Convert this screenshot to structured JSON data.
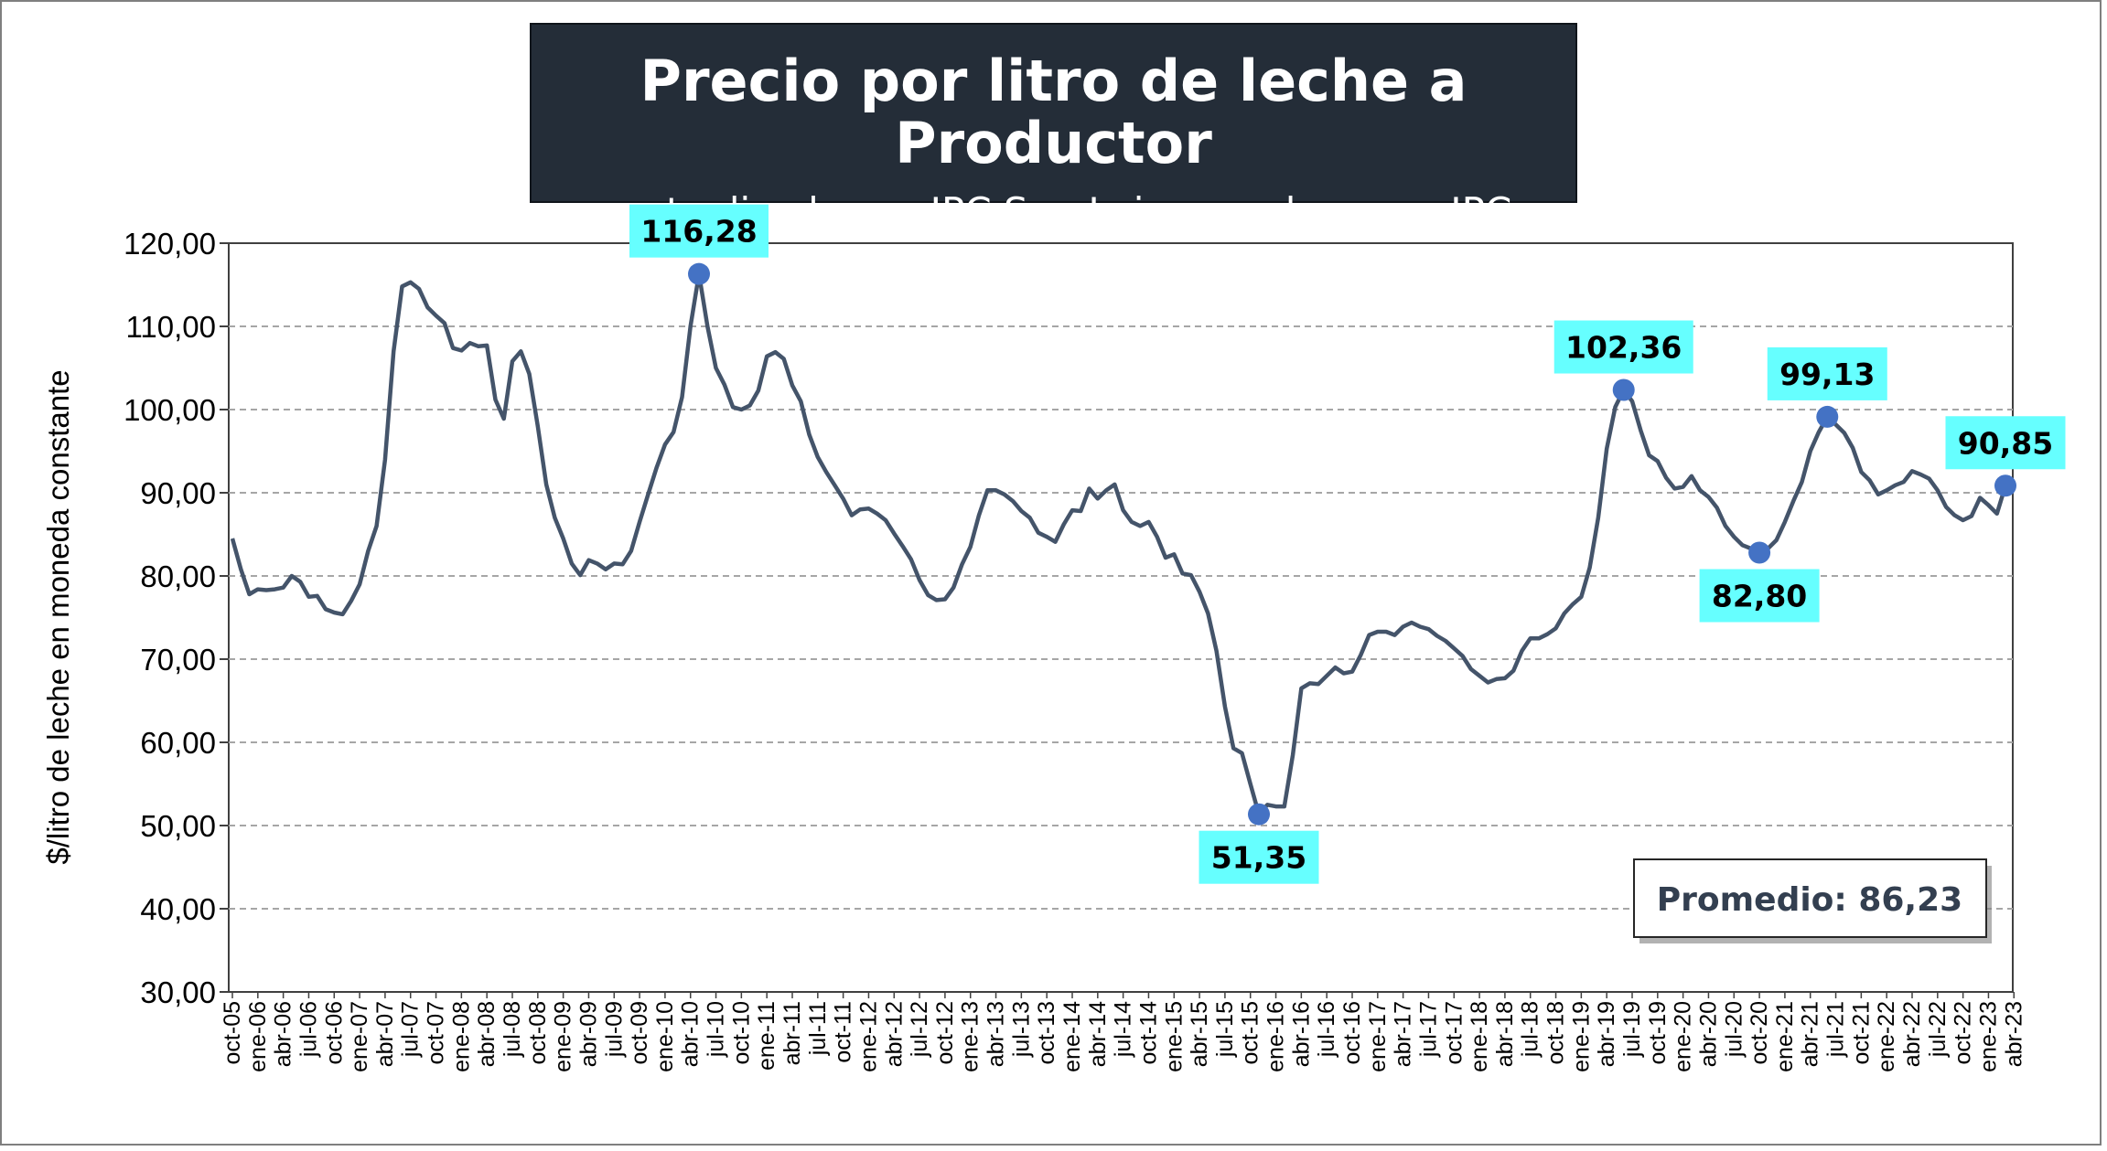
{
  "title": "Precio por litro de leche a Productor",
  "subtitle": "- actualizado por IPC San Luis empalme con IPC INDEC -",
  "average_label": "Promedio: 86,23",
  "colors": {
    "line": "#44546a",
    "marker": "#4472c4",
    "label_bg": "#66ffff",
    "title_bg": "#242d38",
    "grid": "#a6a6a6"
  },
  "chart_data": {
    "type": "line",
    "title": "Precio por litro de leche a Productor",
    "subtitle": "- actualizado por IPC San Luis empalme con IPC INDEC -",
    "xlabel": "",
    "ylabel": "$/litro de leche en moneda constante",
    "ylim": [
      30,
      120
    ],
    "yticks": [
      "30,00",
      "40,00",
      "50,00",
      "60,00",
      "70,00",
      "80,00",
      "90,00",
      "100,00",
      "110,00",
      "120,00"
    ],
    "grid": true,
    "x_tick_labels": [
      "oct-05",
      "ene-06",
      "abr-06",
      "jul-06",
      "oct-06",
      "ene-07",
      "abr-07",
      "jul-07",
      "oct-07",
      "ene-08",
      "abr-08",
      "jul-08",
      "oct-08",
      "ene-09",
      "abr-09",
      "jul-09",
      "oct-09",
      "ene-10",
      "abr-10",
      "jul-10",
      "oct-10",
      "ene-11",
      "abr-11",
      "jul-11",
      "oct-11",
      "ene-12",
      "abr-12",
      "jul-12",
      "oct-12",
      "ene-13",
      "abr-13",
      "jul-13",
      "oct-13",
      "ene-14",
      "abr-14",
      "jul-14",
      "oct-14",
      "ene-15",
      "abr-15",
      "jul-15",
      "oct-15",
      "ene-16",
      "abr-16",
      "jul-16",
      "oct-16",
      "ene-17",
      "abr-17",
      "jul-17",
      "oct-17",
      "ene-18",
      "abr-18",
      "jul-18",
      "oct-18",
      "ene-19",
      "abr-19",
      "jul-19",
      "oct-19",
      "ene-20",
      "abr-20",
      "jul-20",
      "oct-20",
      "ene-21",
      "abr-21",
      "jul-21",
      "oct-21",
      "ene-22",
      "abr-22",
      "jul-22",
      "oct-22",
      "ene-23",
      "abr-23"
    ],
    "series": [
      {
        "values": [
          84.5,
          80.8,
          77.8,
          78.4,
          78.3,
          78.4,
          78.6,
          80.0,
          79.3,
          77.5,
          77.6,
          76.0,
          75.6,
          75.4,
          77.0,
          79.0,
          83.0,
          86.0,
          94.0,
          107.0,
          114.8,
          115.3,
          114.5,
          112.3,
          111.3,
          110.4,
          107.4,
          107.1,
          108.0,
          107.6,
          107.7,
          101.2,
          98.9,
          105.8,
          107.0,
          104.3,
          98.0,
          91.0,
          87.0,
          84.5,
          81.5,
          80.1,
          81.9,
          81.5,
          80.8,
          81.5,
          81.4,
          83.0,
          86.5,
          89.8,
          93.0,
          95.8,
          97.3,
          101.5,
          110.0,
          116.3,
          110.0,
          105.0,
          103.0,
          100.3,
          100.0,
          100.5,
          102.3,
          106.4,
          106.9,
          106.1,
          102.9,
          101.0,
          97.0,
          94.3,
          92.5,
          90.9,
          89.3,
          87.3,
          88.0,
          88.1,
          87.5,
          86.7,
          85.1,
          83.6,
          82.0,
          79.5,
          77.7,
          77.1,
          77.2,
          78.6,
          81.4,
          83.5,
          87.3,
          90.3,
          90.3,
          89.8,
          89.0,
          87.8,
          87.0,
          85.2,
          84.7,
          84.1,
          86.2,
          87.9,
          87.8,
          90.5,
          89.3,
          90.3,
          91.0,
          87.9,
          86.5,
          86.0,
          86.5,
          84.7,
          82.2,
          82.6,
          80.3,
          80.1,
          78.1,
          75.5,
          71.0,
          64.3,
          59.3,
          58.7,
          55.0,
          51.35,
          52.5,
          52.3,
          52.3,
          58.5,
          66.5,
          67.1,
          67.0,
          68.0,
          69.0,
          68.3,
          68.5,
          70.5,
          72.9,
          73.3,
          73.3,
          72.9,
          73.9,
          74.4,
          73.9,
          73.6,
          72.8,
          72.2,
          71.3,
          70.4,
          68.8,
          68.0,
          67.2,
          67.6,
          67.7,
          68.6,
          71.0,
          72.5,
          72.5,
          73.0,
          73.7,
          75.5,
          76.6,
          77.5,
          81.0,
          87.0,
          95.3,
          100.3,
          102.36,
          101.0,
          97.5,
          94.5,
          93.8,
          91.8,
          90.5,
          90.7,
          92.0,
          90.3,
          89.5,
          88.2,
          86.0,
          84.7,
          83.7,
          83.3,
          82.8,
          83.3,
          84.3,
          86.5,
          89.0,
          91.3,
          95.0,
          97.3,
          99.13,
          98.2,
          97.2,
          95.4,
          92.5,
          91.5,
          89.8,
          90.3,
          90.9,
          91.3,
          92.6,
          92.2,
          91.7,
          90.3,
          88.3,
          87.3,
          86.7,
          87.2,
          89.4,
          88.5,
          87.5,
          90.85
        ]
      }
    ],
    "highlights": [
      {
        "label": "116,28",
        "value": 116.28
      },
      {
        "label": "51,35",
        "value": 51.35
      },
      {
        "label": "102,36",
        "value": 102.36
      },
      {
        "label": "82,80",
        "value": 82.8
      },
      {
        "label": "99,13",
        "value": 99.13
      },
      {
        "label": "90,85",
        "value": 90.85
      }
    ],
    "annotations": [
      "Promedio: 86,23"
    ]
  }
}
